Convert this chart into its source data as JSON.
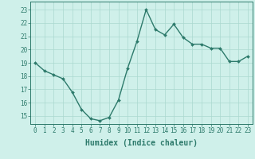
{
  "x": [
    0,
    1,
    2,
    3,
    4,
    5,
    6,
    7,
    8,
    9,
    10,
    11,
    12,
    13,
    14,
    15,
    16,
    17,
    18,
    19,
    20,
    21,
    22,
    23
  ],
  "y": [
    19.0,
    18.4,
    18.1,
    17.8,
    16.8,
    15.5,
    14.8,
    14.65,
    14.9,
    16.2,
    18.6,
    20.6,
    23.0,
    21.5,
    21.1,
    21.9,
    20.9,
    20.4,
    20.4,
    20.1,
    20.1,
    19.1,
    19.1,
    19.5
  ],
  "line_color": "#2d7a6b",
  "marker": "D",
  "marker_size": 2.0,
  "bg_color": "#cff0ea",
  "grid_color": "#aad8cf",
  "xlabel": "Humidex (Indice chaleur)",
  "xlim": [
    -0.5,
    23.5
  ],
  "ylim": [
    14.4,
    23.6
  ],
  "yticks": [
    15,
    16,
    17,
    18,
    19,
    20,
    21,
    22,
    23
  ],
  "xticks": [
    0,
    1,
    2,
    3,
    4,
    5,
    6,
    7,
    8,
    9,
    10,
    11,
    12,
    13,
    14,
    15,
    16,
    17,
    18,
    19,
    20,
    21,
    22,
    23
  ],
  "tick_fontsize": 5.5,
  "xlabel_fontsize": 7.0,
  "line_width": 1.0
}
